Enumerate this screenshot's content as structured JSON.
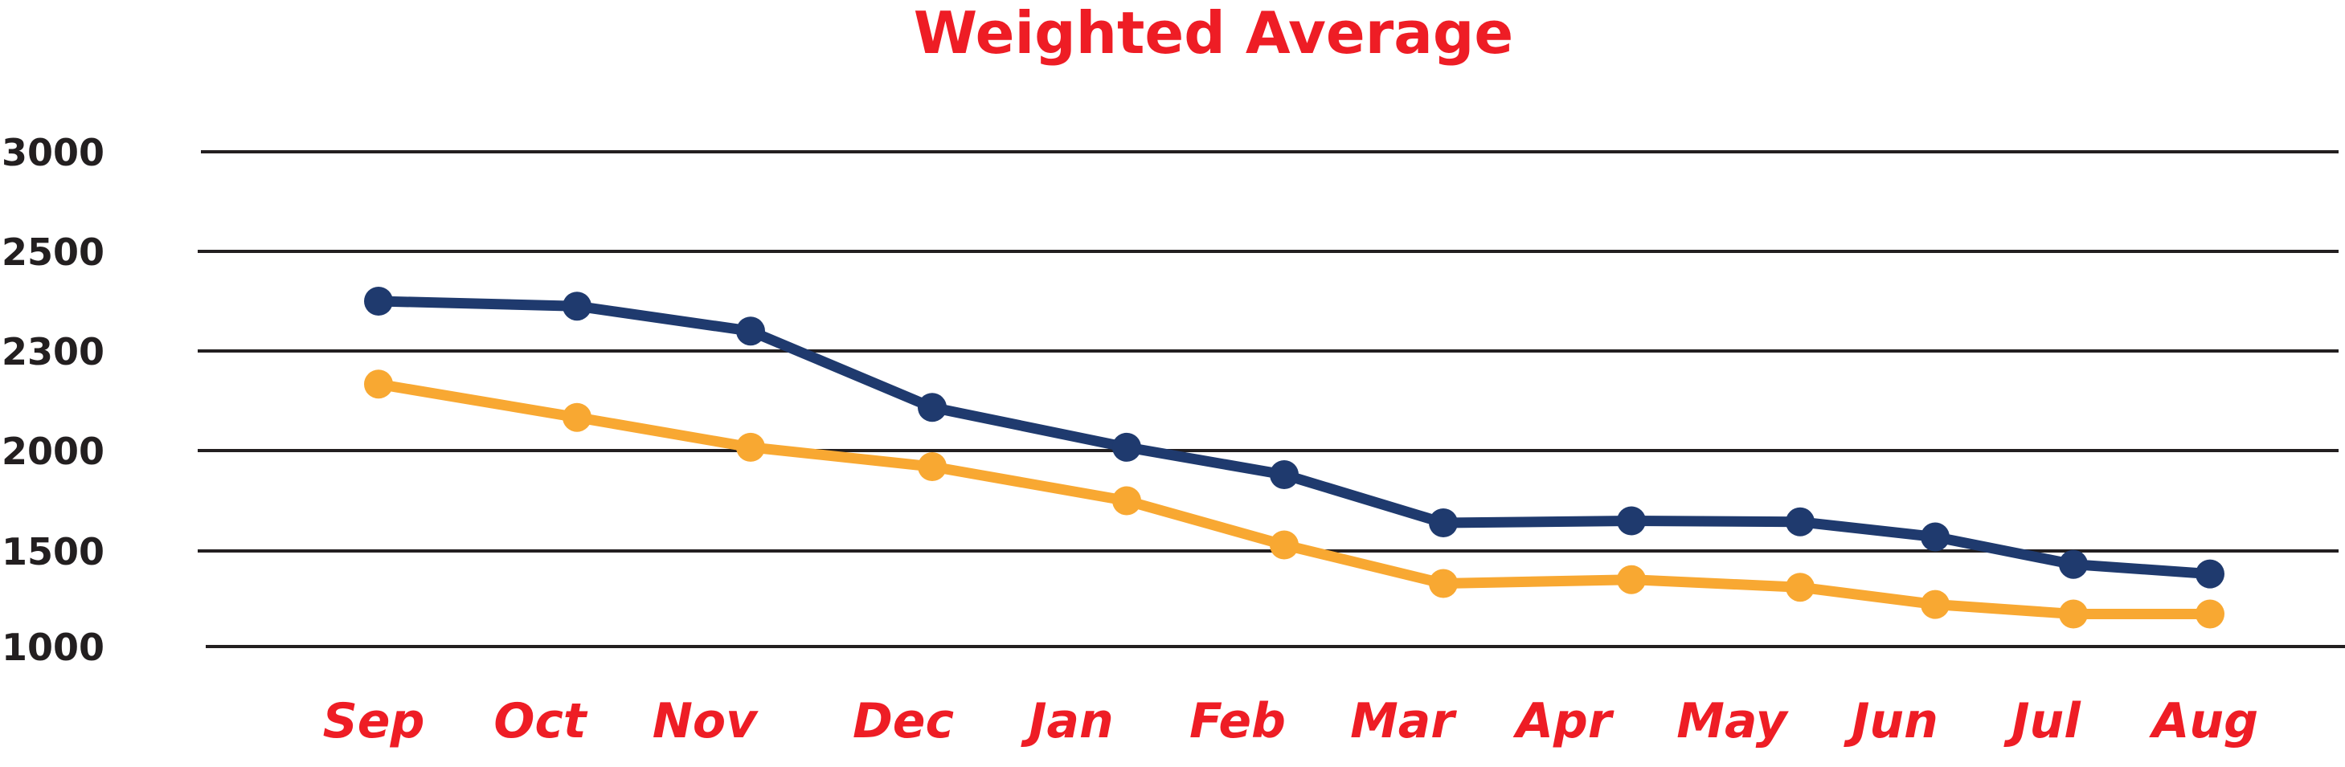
{
  "colors": {
    "title": "#ee1d25",
    "x_labels": "#ee1d25",
    "y_labels": "#231f20",
    "gridline": "#231f20",
    "series_dark": "#1f3a6e",
    "series_light": "#f8a832",
    "background": "#ffffff"
  },
  "chart_data": {
    "type": "line",
    "title": "Weighted Average",
    "xlabel": "",
    "ylabel": "",
    "categories": [
      "Sep",
      "Oct",
      "Nov",
      "Dec",
      "Jan",
      "Feb",
      "Mar",
      "Apr",
      "May",
      "Jun",
      "Jul",
      "Aug"
    ],
    "y_ticks": [
      "3000",
      "2500",
      "2300",
      "2000",
      "1500",
      "1000"
    ],
    "grid": true,
    "legend": "none",
    "series": [
      {
        "color": "#1f3a6e",
        "values": [
          2400,
          2390,
          2340,
          2130,
          2010,
          1880,
          1640,
          1650,
          1645,
          1570,
          1430,
          1380
        ]
      },
      {
        "color": "#f8a832",
        "values": [
          2200,
          2100,
          2010,
          1920,
          1750,
          1530,
          1330,
          1350,
          1310,
          1220,
          1170,
          1170
        ]
      }
    ]
  }
}
